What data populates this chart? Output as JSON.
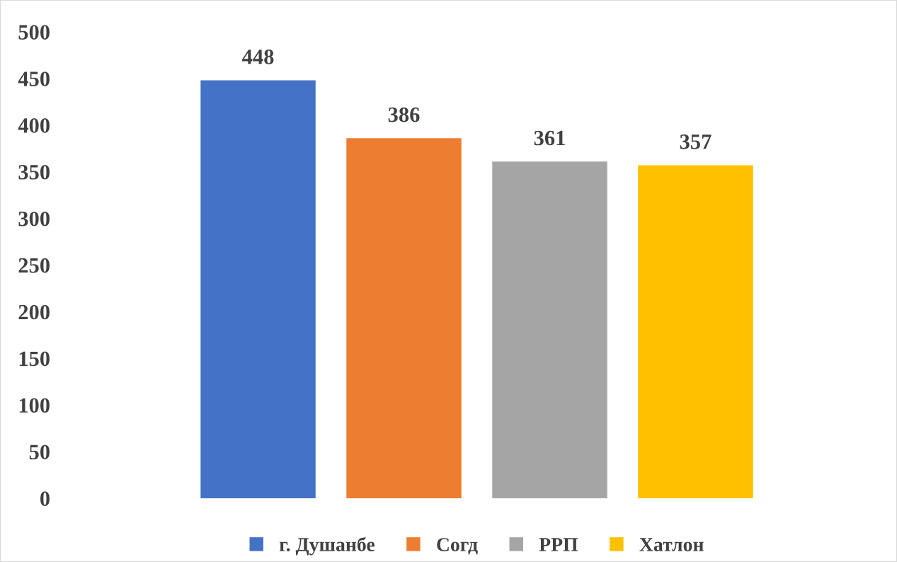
{
  "chart_data": {
    "type": "bar",
    "categories": [
      null
    ],
    "series": [
      {
        "name": "г. Душанбе",
        "color": "#4472c4",
        "values": [
          448
        ]
      },
      {
        "name": "Согд",
        "color": "#ed7d31",
        "values": [
          386
        ]
      },
      {
        "name": "РРП",
        "color": "#a5a5a5",
        "values": [
          361
        ]
      },
      {
        "name": "Хатлон",
        "color": "#ffc000",
        "values": [
          357
        ]
      }
    ],
    "ylim": [
      0,
      500
    ],
    "yticks": [
      0,
      50,
      100,
      150,
      200,
      250,
      300,
      350,
      400,
      450,
      500
    ],
    "data_labels": true,
    "legend": "bottom",
    "grid": false
  }
}
